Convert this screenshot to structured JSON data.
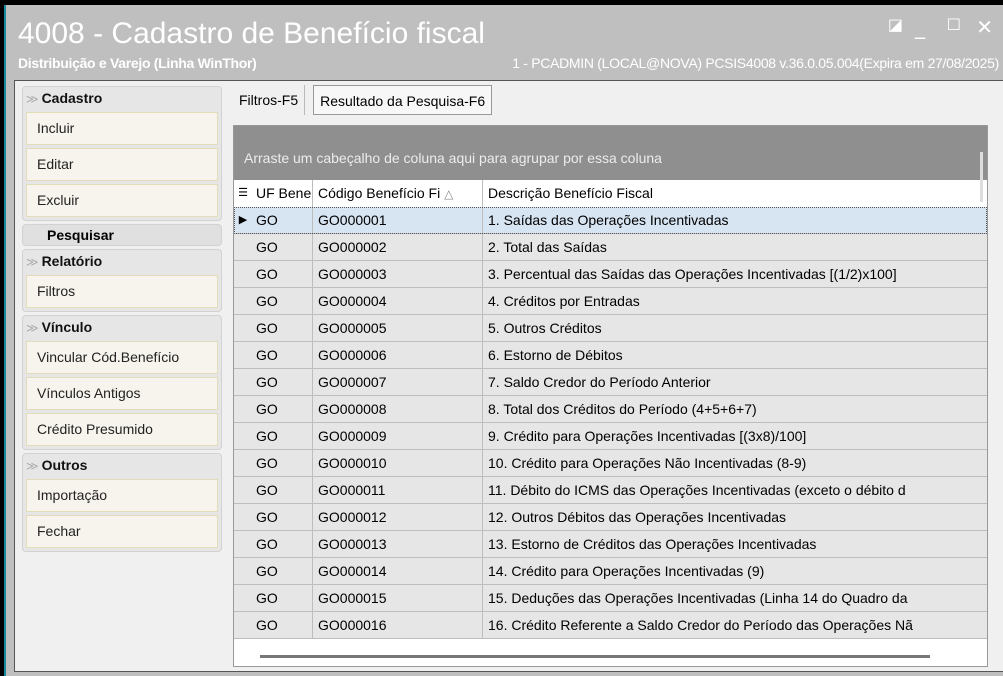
{
  "window": {
    "title": "4008 - Cadastro de Benefício fiscal",
    "subtitle": "Distribuição e Varejo (Linha WinThor)",
    "session": "1 - PCADMIN (LOCAL@NOVA)   PCSIS4008  v.36.0.05.004(Expira em 27/08/2025)"
  },
  "sidebar": {
    "cadastro": {
      "label": "Cadastro",
      "items": [
        "Incluir",
        "Editar",
        "Excluir"
      ]
    },
    "pesquisar": "Pesquisar",
    "relatorio": {
      "label": "Relatório",
      "items": [
        "Filtros"
      ]
    },
    "vinculo": {
      "label": "Vínculo",
      "items": [
        "Vincular Cód.Benefício",
        "Vínculos Antigos",
        "Crédito Presumido"
      ]
    },
    "outros": {
      "label": "Outros",
      "items": [
        "Importação",
        "Fechar"
      ]
    }
  },
  "tabs": [
    "Filtros-F5",
    "Resultado da Pesquisa-F6"
  ],
  "grid": {
    "group_hint": "Arraste um cabeçalho de coluna aqui para agrupar por essa coluna",
    "columns": [
      "UF Bene",
      "Código Benefício Fi",
      "Descrição Benefício Fiscal"
    ],
    "sort_indicator": "△",
    "rows": [
      [
        "GO",
        "GO000001",
        "1. Saídas das Operações Incentivadas"
      ],
      [
        "GO",
        "GO000002",
        "2. Total das Saídas"
      ],
      [
        "GO",
        "GO000003",
        "3. Percentual das Saídas das Operações Incentivadas [(1/2)x100]"
      ],
      [
        "GO",
        "GO000004",
        "4. Créditos por Entradas"
      ],
      [
        "GO",
        "GO000005",
        "5. Outros Créditos"
      ],
      [
        "GO",
        "GO000006",
        "6. Estorno de Débitos"
      ],
      [
        "GO",
        "GO000007",
        "7. Saldo Credor do Período Anterior"
      ],
      [
        "GO",
        "GO000008",
        "8. Total dos Créditos do Período (4+5+6+7)"
      ],
      [
        "GO",
        "GO000009",
        "9. Crédito para Operações Incentivadas [(3x8)/100]"
      ],
      [
        "GO",
        "GO000010",
        "10. Crédito para Operações Não Incentivadas (8-9)"
      ],
      [
        "GO",
        "GO000011",
        "11. Débito do ICMS das Operações Incentivadas (exceto o débito d"
      ],
      [
        "GO",
        "GO000012",
        "12. Outros Débitos das Operações Incentivadas"
      ],
      [
        "GO",
        "GO000013",
        "13. Estorno de Créditos das Operações Incentivadas"
      ],
      [
        "GO",
        "GO000014",
        "14. Crédito para Operações Incentivadas (9)"
      ],
      [
        "GO",
        "GO000015",
        "15. Deduções das Operações Incentivadas (Linha 14 do Quadro da"
      ],
      [
        "GO",
        "GO000016",
        "16. Crédito Referente a Saldo Credor do Período das Operações Nã"
      ]
    ]
  }
}
